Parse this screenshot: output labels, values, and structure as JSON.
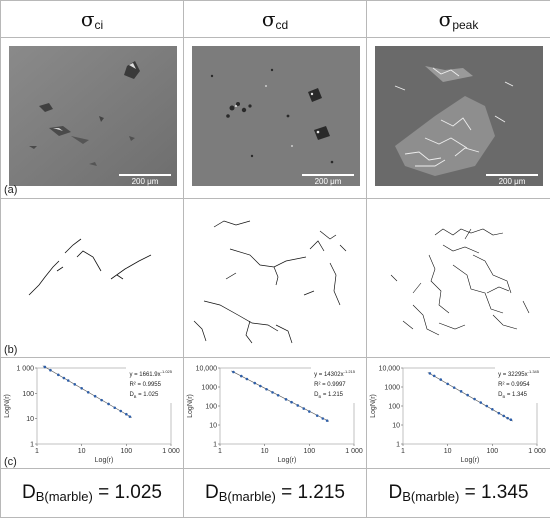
{
  "columns": [
    {
      "sigma": "σ",
      "sub": "ci"
    },
    {
      "sigma": "σ",
      "sub": "cd"
    },
    {
      "sigma": "σ",
      "sub": "peak"
    }
  ],
  "row_labels": [
    "(a)",
    "(b)",
    "(c)"
  ],
  "scale_bar": "200 μm",
  "footer": {
    "prefix": "D",
    "sub": "B(marble)",
    "eq": " = "
  },
  "chart_data": [
    {
      "type": "scatter",
      "xlabel": "Log(r)",
      "ylabel": "LogN(r)",
      "xscale": "log",
      "yscale": "log",
      "xlim": [
        1,
        1000
      ],
      "ylim": [
        1,
        1000
      ],
      "xticks": [
        "1",
        "10",
        "100",
        "1 000"
      ],
      "yticks": [
        "1",
        "10",
        "100",
        "1 000"
      ],
      "fit": {
        "a": 1661.9,
        "b": -1.025
      },
      "x": [
        1.5,
        2,
        3,
        4,
        5,
        7,
        10,
        14,
        20,
        28,
        40,
        55,
        75,
        100,
        120
      ],
      "y": [
        1097,
        818,
        538,
        401,
        320,
        227,
        158,
        110,
        77,
        54,
        38,
        27,
        20,
        15,
        12
      ],
      "equation": {
        "y": "y = 1661.9x",
        "exp": "-1.025",
        "r2": "R² = 0.9955",
        "db": "D",
        "db_sub": "B",
        "db_val": "= 1.025"
      },
      "db_value": "1.025"
    },
    {
      "type": "scatter",
      "xlabel": "Log(r)",
      "ylabel": "LogN(r)",
      "xscale": "log",
      "yscale": "log",
      "xlim": [
        1,
        1000
      ],
      "ylim": [
        1,
        10000
      ],
      "xticks": [
        "1",
        "10",
        "100",
        "1 000"
      ],
      "yticks": [
        "1",
        "10",
        "100",
        "1000",
        "10,000"
      ],
      "fit": {
        "a": 14302,
        "b": -1.215
      },
      "x": [
        2,
        3,
        4,
        6,
        8,
        11,
        15,
        20,
        30,
        40,
        55,
        75,
        100,
        150,
        200,
        250
      ],
      "y": [
        6158,
        3752,
        2633,
        1604,
        1125,
        761,
        522,
        368,
        224,
        158,
        107,
        73,
        51,
        31,
        22,
        17
      ],
      "equation": {
        "y": "y = 14302x",
        "exp": "-1.215",
        "r2": "R² = 0.9997",
        "db": "D",
        "db_sub": "B",
        "db_val": "= 1.215"
      },
      "db_value": "1.215"
    },
    {
      "type": "scatter",
      "xlabel": "Log(r)",
      "ylabel": "LogN(r)",
      "xscale": "log",
      "yscale": "log",
      "xlim": [
        1,
        1000
      ],
      "ylim": [
        1,
        10000
      ],
      "xticks": [
        "1",
        "10",
        "100",
        "1 000"
      ],
      "yticks": [
        "1",
        "10",
        "100",
        "1000",
        "10,000"
      ],
      "fit": {
        "a": 32295,
        "b": -1.345
      },
      "x": [
        4,
        5,
        7,
        10,
        14,
        20,
        28,
        40,
        55,
        75,
        100,
        140,
        180,
        220,
        260
      ],
      "y": [
        5210,
        3850,
        2454,
        1460,
        928,
        590,
        375,
        233,
        152,
        100,
        67,
        42,
        30,
        23,
        19
      ],
      "equation": {
        "y": "y = 32295x",
        "exp": "-1.345",
        "r2": "R² = 0.9954",
        "db": "D",
        "db_sub": "B",
        "db_val": "= 1.345"
      },
      "db_value": "1.345"
    }
  ]
}
